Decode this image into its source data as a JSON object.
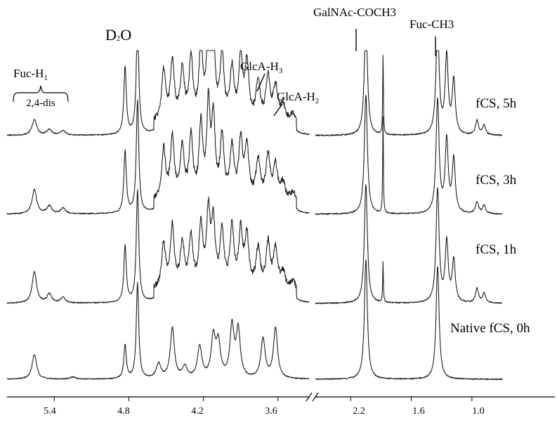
{
  "chart_data": {
    "type": "line",
    "title": "",
    "xlabel": "",
    "ylabel": "",
    "x_reversed": true,
    "x_axis_break": [
      2.55,
      3.35
    ],
    "panels": [
      {
        "xlim": [
          5.78,
          3.35
        ]
      },
      {
        "xlim": [
          2.55,
          0.7
        ]
      }
    ],
    "x_ticks": [
      "5.4",
      "4.8",
      "4.2",
      "3.6",
      "2.2",
      "1.6",
      "1.0"
    ],
    "series": [
      {
        "name": "fCS, 5h",
        "peaks": [
          {
            "ppm": 5.56,
            "height": 0.14
          },
          {
            "ppm": 5.44,
            "height": 0.05
          },
          {
            "ppm": 5.33,
            "height": 0.04
          },
          {
            "ppm": 4.83,
            "height": 0.6
          },
          {
            "ppm": 4.73,
            "height": 1.0
          },
          {
            "ppm": 4.52,
            "height": 0.45
          },
          {
            "ppm": 4.45,
            "height": 0.52
          },
          {
            "ppm": 4.37,
            "height": 0.45
          },
          {
            "ppm": 4.3,
            "height": 0.55
          },
          {
            "ppm": 4.22,
            "height": 0.7
          },
          {
            "ppm": 4.16,
            "height": 0.85
          },
          {
            "ppm": 4.12,
            "height": 0.75
          },
          {
            "ppm": 4.05,
            "height": 0.6
          },
          {
            "ppm": 3.97,
            "height": 0.45
          },
          {
            "ppm": 3.9,
            "height": 0.55
          },
          {
            "ppm": 3.85,
            "height": 0.5
          },
          {
            "ppm": 3.76,
            "height": 0.35
          },
          {
            "ppm": 3.68,
            "height": 0.4
          },
          {
            "ppm": 3.62,
            "height": 0.3
          },
          {
            "ppm": 3.56,
            "height": 0.15
          },
          {
            "ppm": 3.48,
            "height": 0.08
          },
          {
            "ppm": 2.05,
            "height": 1.0
          },
          {
            "ppm": 1.88,
            "height": 0.7
          },
          {
            "ppm": 1.34,
            "height": 0.95
          },
          {
            "ppm": 1.25,
            "height": 0.65
          },
          {
            "ppm": 1.18,
            "height": 0.45
          },
          {
            "ppm": 0.95,
            "height": 0.12
          },
          {
            "ppm": 0.88,
            "height": 0.08
          }
        ]
      },
      {
        "name": "fCS, 3h",
        "peaks": [
          {
            "ppm": 5.56,
            "height": 0.22
          },
          {
            "ppm": 5.44,
            "height": 0.07
          },
          {
            "ppm": 5.33,
            "height": 0.05
          },
          {
            "ppm": 4.83,
            "height": 0.55
          },
          {
            "ppm": 4.73,
            "height": 1.0
          },
          {
            "ppm": 4.52,
            "height": 0.45
          },
          {
            "ppm": 4.45,
            "height": 0.55
          },
          {
            "ppm": 4.37,
            "height": 0.45
          },
          {
            "ppm": 4.3,
            "height": 0.55
          },
          {
            "ppm": 4.22,
            "height": 0.65
          },
          {
            "ppm": 4.16,
            "height": 0.8
          },
          {
            "ppm": 4.12,
            "height": 0.7
          },
          {
            "ppm": 4.05,
            "height": 0.55
          },
          {
            "ppm": 3.97,
            "height": 0.45
          },
          {
            "ppm": 3.9,
            "height": 0.5
          },
          {
            "ppm": 3.85,
            "height": 0.45
          },
          {
            "ppm": 3.76,
            "height": 0.35
          },
          {
            "ppm": 3.68,
            "height": 0.4
          },
          {
            "ppm": 3.62,
            "height": 0.3
          },
          {
            "ppm": 3.56,
            "height": 0.15
          },
          {
            "ppm": 3.48,
            "height": 0.08
          },
          {
            "ppm": 2.05,
            "height": 1.0
          },
          {
            "ppm": 1.88,
            "height": 0.85
          },
          {
            "ppm": 1.34,
            "height": 0.95
          },
          {
            "ppm": 1.25,
            "height": 0.6
          },
          {
            "ppm": 1.18,
            "height": 0.45
          },
          {
            "ppm": 0.95,
            "height": 0.1
          },
          {
            "ppm": 0.88,
            "height": 0.07
          }
        ]
      },
      {
        "name": "fCS, 1h",
        "peaks": [
          {
            "ppm": 5.56,
            "height": 0.28
          },
          {
            "ppm": 5.44,
            "height": 0.08
          },
          {
            "ppm": 5.33,
            "height": 0.05
          },
          {
            "ppm": 4.83,
            "height": 0.5
          },
          {
            "ppm": 4.73,
            "height": 1.0
          },
          {
            "ppm": 4.52,
            "height": 0.4
          },
          {
            "ppm": 4.45,
            "height": 0.55
          },
          {
            "ppm": 4.37,
            "height": 0.4
          },
          {
            "ppm": 4.3,
            "height": 0.45
          },
          {
            "ppm": 4.22,
            "height": 0.55
          },
          {
            "ppm": 4.16,
            "height": 0.65
          },
          {
            "ppm": 4.12,
            "height": 0.55
          },
          {
            "ppm": 4.05,
            "height": 0.5
          },
          {
            "ppm": 3.97,
            "height": 0.55
          },
          {
            "ppm": 3.9,
            "height": 0.5
          },
          {
            "ppm": 3.85,
            "height": 0.45
          },
          {
            "ppm": 3.76,
            "height": 0.35
          },
          {
            "ppm": 3.68,
            "height": 0.4
          },
          {
            "ppm": 3.62,
            "height": 0.35
          },
          {
            "ppm": 3.56,
            "height": 0.15
          },
          {
            "ppm": 3.48,
            "height": 0.08
          },
          {
            "ppm": 2.05,
            "height": 1.0
          },
          {
            "ppm": 1.88,
            "height": 0.35
          },
          {
            "ppm": 1.34,
            "height": 0.95
          },
          {
            "ppm": 1.25,
            "height": 0.5
          },
          {
            "ppm": 1.18,
            "height": 0.35
          },
          {
            "ppm": 0.95,
            "height": 0.12
          },
          {
            "ppm": 0.88,
            "height": 0.08
          }
        ]
      },
      {
        "name": "Native fCS, 0h",
        "peaks": [
          {
            "ppm": 5.56,
            "height": 0.22
          },
          {
            "ppm": 5.25,
            "height": 0.02
          },
          {
            "ppm": 4.83,
            "height": 0.3
          },
          {
            "ppm": 4.73,
            "height": 0.85
          },
          {
            "ppm": 4.56,
            "height": 0.13
          },
          {
            "ppm": 4.45,
            "height": 0.45
          },
          {
            "ppm": 4.35,
            "height": 0.1
          },
          {
            "ppm": 4.23,
            "height": 0.28
          },
          {
            "ppm": 4.12,
            "height": 0.35
          },
          {
            "ppm": 4.08,
            "height": 0.3
          },
          {
            "ppm": 3.97,
            "height": 0.45
          },
          {
            "ppm": 3.92,
            "height": 0.42
          },
          {
            "ppm": 3.72,
            "height": 0.35
          },
          {
            "ppm": 3.62,
            "height": 0.45
          },
          {
            "ppm": 2.05,
            "height": 1.0
          },
          {
            "ppm": 1.34,
            "height": 0.95
          }
        ]
      }
    ],
    "annotations": [
      {
        "base": "Fuc-H",
        "sub": "1",
        "ppm": 5.56
      },
      {
        "text": "2,4-dis",
        "ppm": 5.56
      },
      {
        "base": "D",
        "sub": "2",
        "tail": "O",
        "ppm": 4.73
      },
      {
        "base": "GlcA-H",
        "sub": "3",
        "ppm": 3.68
      },
      {
        "base": "GlcA-H",
        "sub": "2",
        "ppm": 3.48
      },
      {
        "text": "GalNAc-COCH3",
        "ppm": 2.05
      },
      {
        "text": "Fuc-CH3",
        "ppm": 1.34
      }
    ]
  }
}
